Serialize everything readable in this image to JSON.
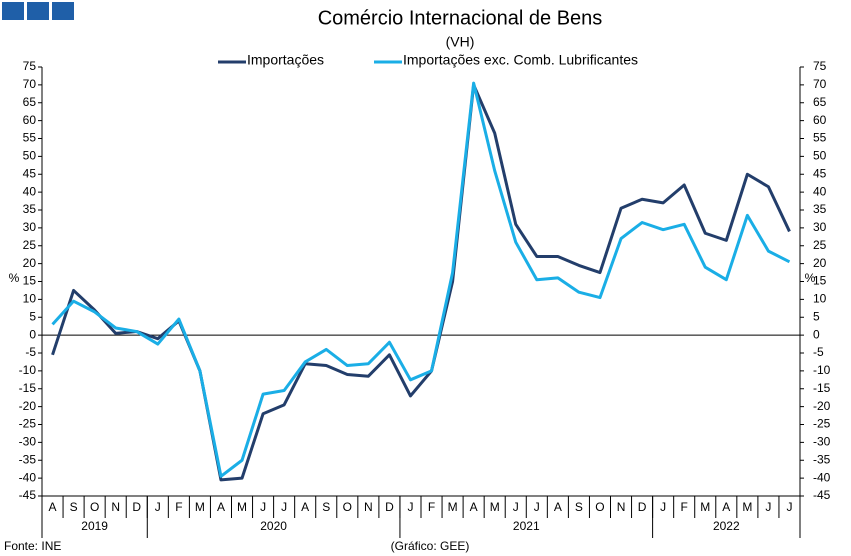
{
  "chart_data": {
    "type": "line",
    "title": "Comércio Internacional de Bens",
    "subtitle": "(VH)",
    "y_label": "%",
    "y2_label": "%",
    "categories": [
      "A",
      "S",
      "O",
      "N",
      "D",
      "J",
      "F",
      "M",
      "A",
      "M",
      "J",
      "J",
      "A",
      "S",
      "O",
      "N",
      "D",
      "J",
      "F",
      "M",
      "A",
      "M",
      "J",
      "J",
      "A",
      "S",
      "O",
      "N",
      "D",
      "J",
      "F",
      "M",
      "A",
      "M",
      "J",
      "J"
    ],
    "groups": [
      {
        "label": "2019",
        "size": 5
      },
      {
        "label": "2020",
        "size": 12
      },
      {
        "label": "2021",
        "size": 12
      },
      {
        "label": "2022",
        "size": 7
      }
    ],
    "series": [
      {
        "name": "Importações",
        "color": "#233e6b",
        "values": [
          -5.5,
          12.5,
          7,
          0.5,
          1,
          -1,
          4,
          -10,
          -40.5,
          -40,
          -22,
          -19.5,
          -8,
          -8.5,
          -11,
          -11.5,
          -5.5,
          -17,
          -10,
          15,
          70,
          56.5,
          31,
          22,
          22,
          19.5,
          17.5,
          35.5,
          38,
          37,
          42,
          28.5,
          26.5,
          45,
          41.5,
          29
        ]
      },
      {
        "name": "Importações exc. Comb. Lubrificantes",
        "color": "#1aaee6",
        "values": [
          3,
          9.5,
          6.5,
          2,
          1,
          -2.5,
          4.5,
          -10,
          -39.5,
          -35,
          -16.5,
          -15.5,
          -7.5,
          -4,
          -8.5,
          -8,
          -2,
          -12.5,
          -10,
          17.5,
          70.5,
          46,
          26,
          15.5,
          16,
          12,
          10.5,
          27,
          31.5,
          29.5,
          31,
          19,
          15.5,
          33.5,
          23.5,
          20.5
        ]
      }
    ],
    "ylim": [
      -45,
      75
    ],
    "yticks": [
      -45,
      -40,
      -35,
      -30,
      -25,
      -20,
      -15,
      -10,
      -5,
      0,
      5,
      10,
      15,
      20,
      25,
      30,
      35,
      40,
      45,
      50,
      55,
      60,
      65,
      70,
      75
    ],
    "y2lim": [
      -45,
      75
    ],
    "y2ticks": [
      -45,
      -40,
      -35,
      -30,
      -25,
      -20,
      -15,
      -10,
      -5,
      0,
      5,
      10,
      15,
      20,
      25,
      30,
      35,
      40,
      45,
      50,
      55,
      60,
      65,
      70,
      75
    ],
    "source": "Fonte: INE",
    "credit": "(Gráfico: GEE)"
  }
}
